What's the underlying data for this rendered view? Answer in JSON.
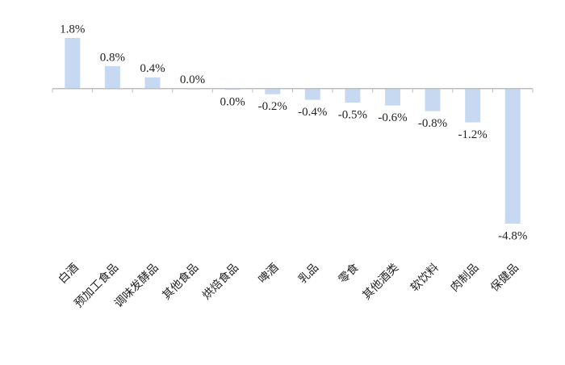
{
  "chart_data": {
    "type": "bar",
    "categories": [
      "白酒",
      "预加工食品",
      "调味发酵品",
      "其他食品",
      "烘焙食品",
      "啤酒",
      "乳品",
      "零食",
      "其他酒类",
      "软饮料",
      "肉制品",
      "保健品"
    ],
    "values": [
      1.8,
      0.8,
      0.4,
      0.0,
      -0.04,
      -0.2,
      -0.4,
      -0.5,
      -0.6,
      -0.8,
      -1.2,
      -4.8
    ],
    "value_labels": [
      "1.8%",
      "0.8%",
      "0.4%",
      "0.0%",
      "0.0%",
      "-0.2%",
      "-0.4%",
      "-0.5%",
      "-0.6%",
      "-0.8%",
      "-1.2%",
      "-4.8%"
    ],
    "color": "#c6d9f1"
  }
}
